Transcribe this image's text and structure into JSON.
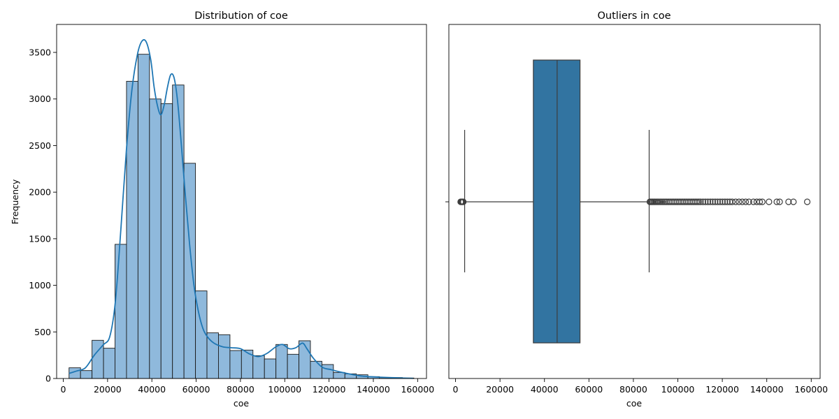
{
  "chart_data": [
    {
      "type": "bar",
      "title": "Distribution of coe",
      "xlabel": "coe",
      "ylabel": "Frequency",
      "xlim": [
        -3000,
        164000
      ],
      "ylim": [
        0,
        3800
      ],
      "xticks": [
        0,
        20000,
        40000,
        60000,
        80000,
        100000,
        120000,
        140000,
        160000
      ],
      "yticks": [
        0,
        500,
        1000,
        1500,
        2000,
        2500,
        3000,
        3500
      ],
      "bin_start": 2600,
      "bin_width": 5190,
      "values": [
        115,
        85,
        410,
        325,
        1440,
        3190,
        3480,
        3000,
        2950,
        3150,
        2310,
        940,
        490,
        470,
        300,
        305,
        245,
        210,
        365,
        260,
        405,
        185,
        150,
        65,
        50,
        40,
        20,
        10,
        10,
        5
      ],
      "colors": {
        "bar_fill": "#8fb9dc",
        "bar_edge": "#1a1a1a",
        "kde": "#1f77b4"
      },
      "kde": {
        "x": [
          2600,
          6000,
          10000,
          14000,
          18000,
          21000,
          23500,
          26000,
          28500,
          31000,
          33500,
          35500,
          37500,
          39500,
          41000,
          42500,
          44000,
          45500,
          47000,
          48500,
          50000,
          51500,
          53000,
          55000,
          57000,
          59000,
          61000,
          63000,
          65000,
          68000,
          72000,
          76000,
          80000,
          84000,
          88000,
          92000,
          96000,
          99000,
          102000,
          105000,
          108000,
          110000,
          113000,
          117000,
          121000,
          125000,
          130000,
          135000,
          140000,
          145000,
          150000,
          155000,
          158000
        ],
        "y": [
          55,
          80,
          115,
          250,
          360,
          450,
          820,
          1600,
          2450,
          3100,
          3480,
          3620,
          3610,
          3420,
          3130,
          2930,
          2830,
          2930,
          3120,
          3260,
          3230,
          3000,
          2600,
          2000,
          1450,
          1000,
          720,
          540,
          450,
          380,
          340,
          330,
          320,
          265,
          235,
          270,
          340,
          365,
          320,
          330,
          380,
          320,
          215,
          120,
          95,
          70,
          45,
          25,
          18,
          12,
          8,
          4,
          2
        ]
      }
    },
    {
      "type": "box",
      "title": "Outliers in coe",
      "xlabel": "coe",
      "xlim": [
        -3000,
        164000
      ],
      "xticks": [
        0,
        20000,
        40000,
        60000,
        80000,
        100000,
        120000,
        140000,
        160000
      ],
      "q1": 35000,
      "median": 45700,
      "q3": 56000,
      "whisker_low": 4100,
      "whisker_high": 87100,
      "colors": {
        "box_fill": "#3274a1",
        "line": "#3d3d3d"
      },
      "outliers": [
        2300,
        2600,
        2900,
        3200,
        3500,
        87400,
        87800,
        88200,
        88700,
        89200,
        89700,
        90300,
        90900,
        91500,
        92200,
        92900,
        93600,
        94300,
        95000,
        95800,
        96600,
        97400,
        98200,
        99000,
        99800,
        100600,
        101400,
        102200,
        103000,
        103800,
        104600,
        105400,
        106200,
        107000,
        107800,
        108600,
        109400,
        110200,
        111300,
        112400,
        113500,
        114600,
        115700,
        116800,
        117900,
        119000,
        120100,
        121200,
        122300,
        123400,
        124500,
        126000,
        127500,
        129000,
        130500,
        132000,
        134000,
        135500,
        136800,
        138000,
        141000,
        144500,
        145800,
        149800,
        152000,
        158200
      ]
    }
  ]
}
